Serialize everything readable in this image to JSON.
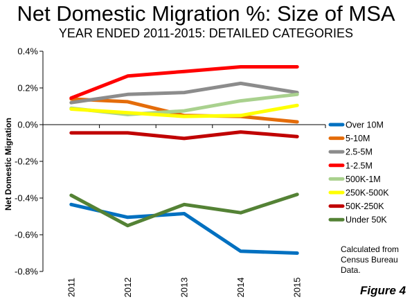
{
  "chart_data": {
    "type": "line",
    "title": "Net Domestic Migration %: Size of MSA",
    "subtitle": "YEAR ENDED 2011-2015: DETAILED CATEGORIES",
    "xlabel": "",
    "ylabel": "Net Domestic Migration",
    "x": [
      "2011",
      "2012",
      "2013",
      "2014",
      "2015"
    ],
    "ylim": [
      -0.8,
      0.4
    ],
    "yticks": [
      "0.4%",
      "0.2%",
      "0.0%",
      "-0.2%",
      "-0.4%",
      "-0.6%",
      "-0.8%"
    ],
    "ytick_values": [
      0.4,
      0.2,
      0.0,
      -0.2,
      -0.4,
      -0.6,
      -0.8
    ],
    "grid": false,
    "legend": "right",
    "series": [
      {
        "name": "Over 10M",
        "color": "#0070C0",
        "values": [
          -0.435,
          -0.505,
          -0.485,
          -0.69,
          -0.7
        ]
      },
      {
        "name": "5-10M",
        "color": "#E46C0A",
        "values": [
          0.14,
          0.125,
          0.05,
          0.045,
          0.015
        ]
      },
      {
        "name": "2.5-5M",
        "color": "#8C8C8C",
        "values": [
          0.12,
          0.165,
          0.175,
          0.225,
          0.175
        ]
      },
      {
        "name": "1-2.5M",
        "color": "#FF0000",
        "values": [
          0.145,
          0.265,
          0.29,
          0.315,
          0.315
        ]
      },
      {
        "name": "500K-1M",
        "color": "#A9D18E",
        "values": [
          0.09,
          0.055,
          0.075,
          0.13,
          0.165
        ]
      },
      {
        "name": "250K-500K",
        "color": "#FFFF00",
        "values": [
          0.085,
          0.065,
          0.045,
          0.05,
          0.105
        ]
      },
      {
        "name": "50K-250K",
        "color": "#C00000",
        "values": [
          -0.045,
          -0.045,
          -0.075,
          -0.04,
          -0.065
        ]
      },
      {
        "name": "Under 50K",
        "color": "#548235",
        "values": [
          -0.385,
          -0.55,
          -0.435,
          -0.48,
          -0.38
        ]
      }
    ]
  },
  "source_note": [
    "Calculated from",
    "Census Bureau",
    "Data."
  ],
  "figure_label": "Figure 4"
}
